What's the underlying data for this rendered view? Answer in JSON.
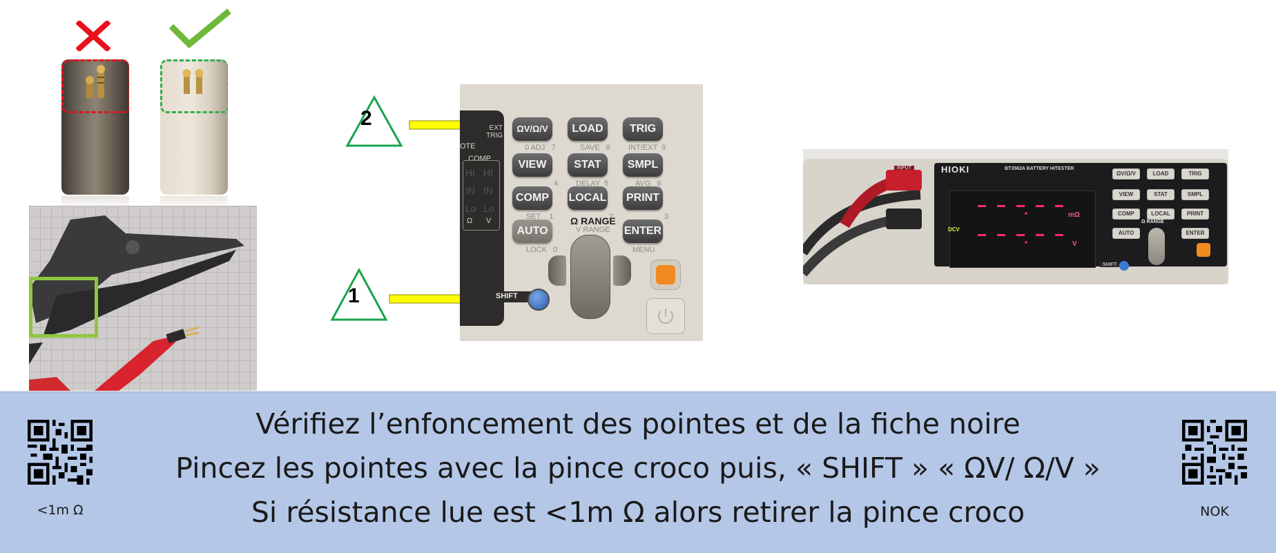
{
  "caption": {
    "line1": "Vérifiez l’enfoncement des pointes et de la fiche noire",
    "line2": "Pincez les pointes avec la pince croco puis, « SHIFT » « ΩV/ Ω/V »",
    "line3": "Si résistance lue est <1m Ω alors retirer la pince croco",
    "qr_left_label": "<1m Ω",
    "qr_right_label": "NOK"
  },
  "markers": {
    "step1": "1",
    "step2": "2"
  },
  "panel": {
    "buttons": [
      {
        "label": "ΩV/Ω/V",
        "sub": "0 ADJ   7"
      },
      {
        "label": "LOAD",
        "sub": "SAVE   8"
      },
      {
        "label": "TRIG",
        "sub": "INT/EXT  9"
      },
      {
        "label": "VIEW",
        "sub": "4"
      },
      {
        "label": "STAT",
        "sub": "DELAY  5"
      },
      {
        "label": "SMPL",
        "sub": "AVG   6"
      },
      {
        "label": "COMP",
        "sub": "SET    1"
      },
      {
        "label": "LOCAL",
        "sub": "2"
      },
      {
        "label": "PRINT",
        "sub": "3"
      },
      {
        "label": "AUTO",
        "sub": "LOCK   0"
      },
      {
        "label": "ENTER",
        "sub": "MENU"
      }
    ],
    "range_label": "Ω RANGE",
    "vrange_label": "V RANGE",
    "shift_label": "SHIFT",
    "ext_trig": "EXT\nTRIG",
    "comp": "COMP",
    "remote": "OTE",
    "hi": "HI",
    "in": "IN",
    "lo": "Lo",
    "omega": "Ω",
    "v": "V"
  },
  "device": {
    "brand": "HIOKI",
    "model": "BT3562A  BATTERY HITESTER",
    "input": "INPUT",
    "dcv": "DCV",
    "mohm": "mΩ",
    "volt": "V",
    "shift": "SHIFT",
    "range": "Ω RANGE",
    "buttons": [
      "ΩV/Ω/V",
      "LOAD",
      "TRIG",
      "VIEW",
      "STAT",
      "SMPL",
      "COMP",
      "LOCAL",
      "PRINT",
      "AUTO",
      "ENTER"
    ]
  },
  "colors": {
    "caption_bg": "#b4c7e7",
    "red_marker": "#e8111b",
    "green_marker": "#2fb04a",
    "arrow_yellow": "#ffff00",
    "green_box": "#8cc63f"
  }
}
